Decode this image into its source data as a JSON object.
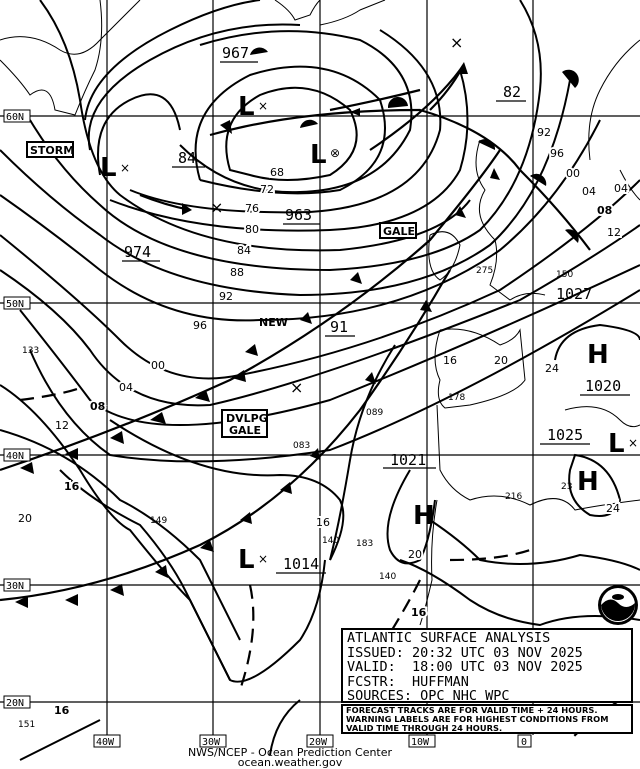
{
  "legend": {
    "title": "ATLANTIC SURFACE ANALYSIS",
    "issued": "ISSUED: 20:32 UTC 03 NOV 2025",
    "valid": "VALID:  18:00 UTC 03 NOV 2025",
    "forecaster": "FCSTR:  HUFFMAN",
    "sources": "SOURCES: OPC NHC WPC"
  },
  "note": {
    "line1": "FORECAST TRACKS ARE FOR VALID TIME + 24 HOURS.",
    "line2": "WARNING LABELS ARE FOR HIGHEST CONDITIONS FROM",
    "line3": "VALID TIME THROUGH 24 HOURS."
  },
  "credit": {
    "line1": "NWS/NCEP - Ocean Prediction Center",
    "line2": "ocean.weather.gov"
  },
  "latitudes": [
    "60N",
    "50N",
    "40N",
    "30N",
    "20N"
  ],
  "longitudes": [
    "40W",
    "30W",
    "20W",
    "10W",
    "0"
  ],
  "warnings": [
    "STORM",
    "GALE",
    "DVLPG",
    "GALE",
    "NEW"
  ],
  "centers": {
    "lows": [
      "L",
      "L",
      "L",
      "L",
      "L"
    ],
    "highs": [
      "H",
      "H",
      "H"
    ],
    "pressures": [
      "967",
      "963",
      "974",
      "1014",
      "1021",
      "1027",
      "1020",
      "1025",
      "91",
      "82",
      "84"
    ]
  },
  "isobar_labels": [
    "68",
    "72",
    "76",
    "80",
    "84",
    "88",
    "92",
    "96",
    "00",
    "04",
    "08",
    "12",
    "16",
    "20",
    "92",
    "96",
    "00",
    "04",
    "08",
    "12",
    "16",
    "20",
    "24",
    "24",
    "16",
    "16",
    "20",
    "04"
  ],
  "station_values": [
    "133",
    "149",
    "083",
    "089",
    "178",
    "183",
    "140",
    "216",
    "23",
    "150",
    "275",
    "140"
  ],
  "colors": {
    "ink": "#000000",
    "background": "#ffffff"
  },
  "logo": "NOAA"
}
